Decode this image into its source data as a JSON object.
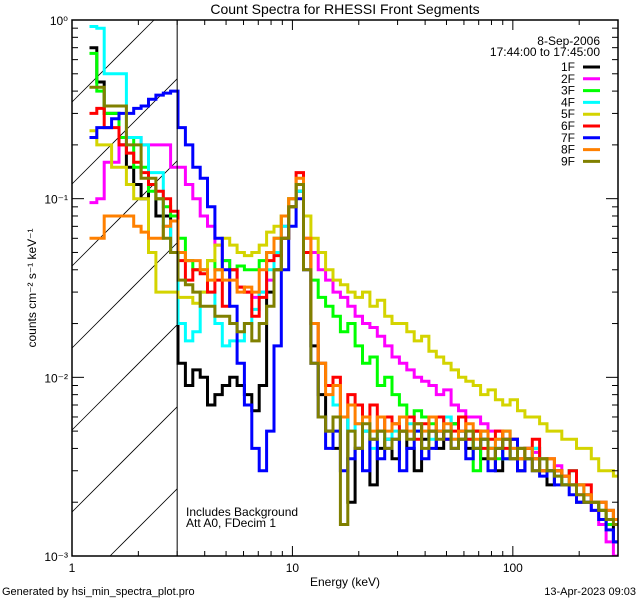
{
  "chart_data": {
    "type": "line",
    "style": "step",
    "title": "Count Spectra for RHESSI Front Segments",
    "xlabel": "Energy (keV)",
    "ylabel": "counts cm⁻² s⁻¹ keV⁻¹",
    "xscale": "log",
    "yscale": "log",
    "xlim": [
      1,
      300
    ],
    "ylim": [
      0.001,
      1
    ],
    "grid": false,
    "x_tick_labels": [
      {
        "value": 1,
        "label": "1"
      },
      {
        "value": 10,
        "label": "10"
      },
      {
        "value": 100,
        "label": "100"
      }
    ],
    "y_tick_labels": [
      {
        "value": 1,
        "label": "10⁰"
      },
      {
        "value": 0.1,
        "label": "10⁻¹"
      },
      {
        "value": 0.01,
        "label": "10⁻²"
      },
      {
        "value": 0.001,
        "label": "10⁻³"
      }
    ],
    "excluded_region_keV": [
      1,
      3
    ],
    "energy_bins": {
      "min": 1.2,
      "max": 309,
      "count": 72,
      "spacing": "log"
    },
    "legend": {
      "position": "top-right",
      "date": "8-Sep-2006",
      "time_range": "17:44:00 to 17:45:00"
    },
    "annotations": [
      "Includes Background",
      "Att A0, FDecim 1"
    ],
    "series": [
      {
        "name": "1F",
        "color": "#000000",
        "values": [
          0.7,
          0.45,
          0.3,
          0.3,
          0.2,
          0.15,
          0.12,
          0.1,
          0.12,
          0.08,
          0.08,
          0.05,
          0.012,
          0.009,
          0.011,
          0.01,
          0.007,
          0.008,
          0.009,
          0.01,
          0.009,
          0.008,
          0.0065,
          0.009,
          0.03,
          0.04,
          0.06,
          0.09,
          0.11,
          0.05,
          0.015,
          0.008,
          0.005,
          0.004,
          0.006,
          0.002,
          0.004,
          0.005,
          0.0025,
          0.004,
          0.0045,
          0.0035,
          0.005,
          0.004,
          0.003,
          0.0045,
          0.005,
          0.004,
          0.005,
          0.0055,
          0.0045,
          0.004,
          0.005,
          0.0035,
          0.004,
          0.003,
          0.0045,
          0.0035,
          0.003,
          0.004,
          0.0035,
          0.003,
          0.0025,
          0.003,
          0.0028,
          0.0025,
          0.002,
          0.0022,
          0.002,
          0.0018,
          0.0015,
          0.0012
        ]
      },
      {
        "name": "2F",
        "color": "#ff00ff",
        "values": [
          0.095,
          0.1,
          0.16,
          0.16,
          0.2,
          0.22,
          0.22,
          0.2,
          0.2,
          0.2,
          0.2,
          0.15,
          0.15,
          0.12,
          0.1,
          0.08,
          0.07,
          0.055,
          0.045,
          0.04,
          0.032,
          0.03,
          0.028,
          0.03,
          0.035,
          0.05,
          0.07,
          0.1,
          0.12,
          0.06,
          0.05,
          0.04,
          0.035,
          0.03,
          0.028,
          0.025,
          0.022,
          0.02,
          0.019,
          0.017,
          0.015,
          0.013,
          0.012,
          0.011,
          0.01,
          0.0095,
          0.009,
          0.008,
          0.0085,
          0.007,
          0.0065,
          0.006,
          0.006,
          0.0055,
          0.005,
          0.005,
          0.0045,
          0.0045,
          0.004,
          0.004,
          0.0038,
          0.0035,
          0.003,
          0.0032,
          0.0028,
          0.0025,
          0.0022,
          0.002,
          0.0018,
          0.0015,
          0.0012,
          0.001
        ]
      },
      {
        "name": "3F",
        "color": "#00ff00",
        "values": [
          0.65,
          0.4,
          0.3,
          0.3,
          0.22,
          0.22,
          0.15,
          0.15,
          0.11,
          0.1,
          0.09,
          0.08,
          0.06,
          0.045,
          0.04,
          0.04,
          0.045,
          0.04,
          0.045,
          0.04,
          0.042,
          0.04,
          0.04,
          0.045,
          0.05,
          0.06,
          0.08,
          0.1,
          0.12,
          0.05,
          0.035,
          0.028,
          0.025,
          0.022,
          0.018,
          0.02,
          0.015,
          0.012,
          0.013,
          0.009,
          0.01,
          0.008,
          0.007,
          0.006,
          0.0065,
          0.006,
          0.0055,
          0.005,
          0.006,
          0.0055,
          0.005,
          0.0045,
          0.003,
          0.005,
          0.004,
          0.0035,
          0.005,
          0.0045,
          0.004,
          0.0035,
          0.004,
          0.0035,
          0.003,
          0.003,
          0.0025,
          0.003,
          0.0025,
          0.002,
          0.002,
          0.0018,
          0.0015,
          0.0015
        ]
      },
      {
        "name": "4F",
        "color": "#00ffff",
        "values": [
          0.92,
          0.9,
          0.5,
          0.5,
          0.5,
          0.22,
          0.22,
          0.2,
          0.14,
          0.14,
          0.07,
          0.05,
          0.02,
          0.016,
          0.018,
          0.03,
          0.03,
          0.02,
          0.015,
          0.016,
          0.016,
          0.02,
          0.024,
          0.03,
          0.04,
          0.05,
          0.07,
          0.09,
          0.11,
          0.05,
          0.02,
          0.012,
          0.009,
          0.007,
          0.006,
          0.005,
          0.0055,
          0.005,
          0.004,
          0.005,
          0.0045,
          0.005,
          0.005,
          0.0055,
          0.005,
          0.005,
          0.0045,
          0.005,
          0.006,
          0.0045,
          0.005,
          0.0045,
          0.004,
          0.0045,
          0.004,
          0.0045,
          0.0035,
          0.004,
          0.0035,
          0.0035,
          0.004,
          0.003,
          0.003,
          0.0028,
          0.0025,
          0.003,
          0.0025,
          0.0022,
          0.002,
          0.002,
          0.0018,
          0.0016
        ]
      },
      {
        "name": "5F",
        "color": "#d4d400",
        "values": [
          0.24,
          0.2,
          0.2,
          0.15,
          0.15,
          0.12,
          0.1,
          0.1,
          0.05,
          0.03,
          0.03,
          0.03,
          0.028,
          0.028,
          0.026,
          0.03,
          0.045,
          0.055,
          0.06,
          0.055,
          0.05,
          0.048,
          0.05,
          0.055,
          0.065,
          0.07,
          0.08,
          0.1,
          0.12,
          0.08,
          0.06,
          0.05,
          0.04,
          0.035,
          0.033,
          0.03,
          0.028,
          0.03,
          0.025,
          0.027,
          0.022,
          0.02,
          0.02,
          0.018,
          0.016,
          0.017,
          0.014,
          0.013,
          0.012,
          0.011,
          0.01,
          0.0095,
          0.009,
          0.008,
          0.0085,
          0.0075,
          0.007,
          0.0075,
          0.0065,
          0.006,
          0.006,
          0.0055,
          0.005,
          0.005,
          0.0045,
          0.0045,
          0.004,
          0.004,
          0.0035,
          0.003,
          0.003,
          0.0028
        ]
      },
      {
        "name": "6F",
        "color": "#ff0000",
        "values": [
          0.3,
          0.32,
          0.25,
          0.25,
          0.2,
          0.18,
          0.16,
          0.14,
          0.12,
          0.11,
          0.1,
          0.085,
          0.045,
          0.035,
          0.04,
          0.038,
          0.03,
          0.035,
          0.025,
          0.04,
          0.032,
          0.03,
          0.022,
          0.028,
          0.045,
          0.048,
          0.06,
          0.09,
          0.14,
          0.05,
          0.02,
          0.012,
          0.009,
          0.01,
          0.006,
          0.008,
          0.007,
          0.006,
          0.007,
          0.005,
          0.006,
          0.0055,
          0.005,
          0.006,
          0.0045,
          0.0055,
          0.005,
          0.006,
          0.0045,
          0.005,
          0.006,
          0.0045,
          0.005,
          0.004,
          0.0045,
          0.005,
          0.004,
          0.0045,
          0.0035,
          0.004,
          0.0045,
          0.003,
          0.0035,
          0.003,
          0.0028,
          0.003,
          0.0025,
          0.0025,
          0.002,
          0.002,
          0.0018,
          0.0016
        ]
      },
      {
        "name": "7F",
        "color": "#0000ff",
        "values": [
          0.22,
          0.25,
          0.25,
          0.28,
          0.3,
          0.3,
          0.32,
          0.33,
          0.36,
          0.38,
          0.39,
          0.4,
          0.25,
          0.2,
          0.15,
          0.13,
          0.09,
          0.06,
          0.04,
          0.025,
          0.012,
          0.007,
          0.004,
          0.003,
          0.005,
          0.015,
          0.04,
          0.07,
          0.1,
          0.04,
          0.012,
          0.006,
          0.004,
          0.005,
          0.003,
          0.0035,
          0.004,
          0.003,
          0.0045,
          0.0035,
          0.004,
          0.0045,
          0.003,
          0.004,
          0.005,
          0.0035,
          0.004,
          0.005,
          0.0045,
          0.004,
          0.005,
          0.0035,
          0.004,
          0.0045,
          0.003,
          0.004,
          0.0035,
          0.0045,
          0.003,
          0.0035,
          0.003,
          0.0028,
          0.003,
          0.0025,
          0.0025,
          0.0022,
          0.002,
          0.002,
          0.0018,
          0.0016,
          0.0014,
          0.0012
        ]
      },
      {
        "name": "8F",
        "color": "#ff8000",
        "values": [
          0.06,
          0.06,
          0.08,
          0.08,
          0.08,
          0.08,
          0.07,
          0.065,
          0.06,
          0.06,
          0.07,
          0.075,
          0.05,
          0.045,
          0.045,
          0.04,
          0.035,
          0.04,
          0.035,
          0.035,
          0.03,
          0.032,
          0.03,
          0.04,
          0.05,
          0.06,
          0.08,
          0.1,
          0.13,
          0.06,
          0.02,
          0.012,
          0.008,
          0.009,
          0.006,
          0.007,
          0.0055,
          0.006,
          0.005,
          0.006,
          0.005,
          0.0055,
          0.006,
          0.005,
          0.0055,
          0.005,
          0.006,
          0.005,
          0.0055,
          0.0045,
          0.005,
          0.0055,
          0.0045,
          0.005,
          0.004,
          0.0045,
          0.005,
          0.004,
          0.0035,
          0.004,
          0.0035,
          0.003,
          0.0035,
          0.003,
          0.0028,
          0.0025,
          0.0025,
          0.0022,
          0.002,
          0.002,
          0.0018,
          0.0016
        ]
      },
      {
        "name": "9F",
        "color": "#808000",
        "values": [
          0.42,
          0.42,
          0.33,
          0.33,
          0.33,
          0.2,
          0.2,
          0.13,
          0.13,
          0.1,
          0.06,
          0.05,
          0.035,
          0.033,
          0.03,
          0.025,
          0.025,
          0.022,
          0.022,
          0.02,
          0.018,
          0.02,
          0.016,
          0.02,
          0.025,
          0.04,
          0.06,
          0.09,
          0.12,
          0.04,
          0.012,
          0.006,
          0.005,
          0.006,
          0.0015,
          0.005,
          0.004,
          0.0055,
          0.0045,
          0.005,
          0.004,
          0.0045,
          0.005,
          0.0045,
          0.0055,
          0.004,
          0.005,
          0.0045,
          0.005,
          0.004,
          0.0045,
          0.005,
          0.004,
          0.0045,
          0.0035,
          0.004,
          0.0045,
          0.0035,
          0.004,
          0.0035,
          0.003,
          0.0035,
          0.003,
          0.0028,
          0.0025,
          0.0025,
          0.0022,
          0.002,
          0.002,
          0.0018,
          0.0016,
          0.0015
        ]
      }
    ]
  },
  "footer": {
    "generated_by": "Generated by hsi_min_spectra_plot.pro",
    "timestamp": "13-Apr-2023 09:03"
  }
}
